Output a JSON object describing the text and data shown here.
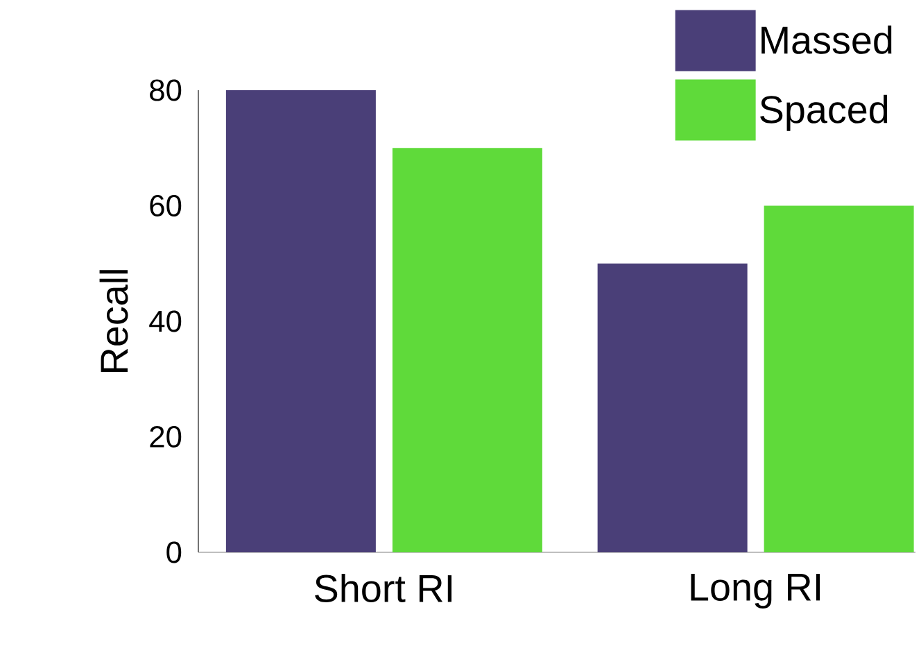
{
  "chart_data": {
    "type": "bar",
    "ylabel": "Recall",
    "categories": [
      "Short RI",
      "Long RI"
    ],
    "series": [
      {
        "name": "Massed",
        "color": "#4a3f78",
        "values": [
          80,
          50
        ]
      },
      {
        "name": "Spaced",
        "color": "#5fda3a",
        "values": [
          70,
          60
        ]
      }
    ],
    "ylim": [
      0,
      80
    ],
    "yticks": [
      0,
      20,
      40,
      60,
      80
    ],
    "legend": "top right"
  }
}
